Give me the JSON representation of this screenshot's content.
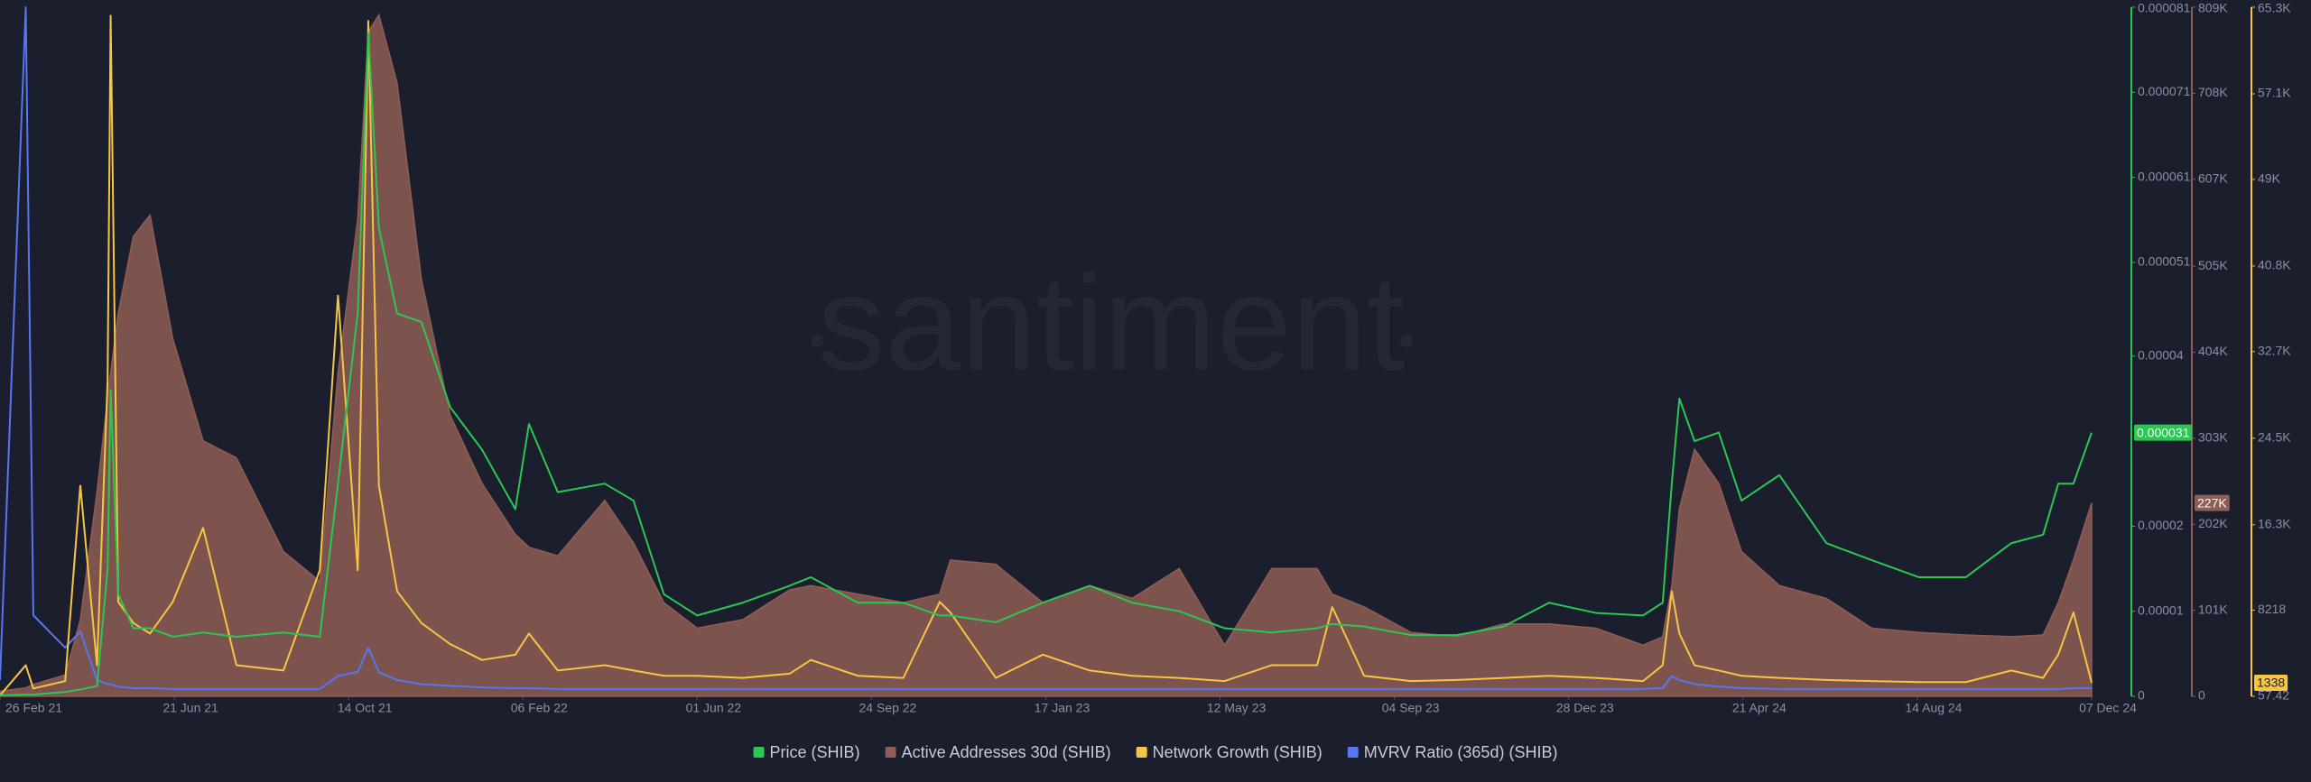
{
  "chart_data": {
    "type": "line",
    "watermark": "santiment",
    "x": [
      "2021-02-26",
      "2021-03-15",
      "2021-03-20",
      "2021-04-10",
      "2021-04-20",
      "2021-05-01",
      "2021-05-08",
      "2021-05-10",
      "2021-05-15",
      "2021-05-25",
      "2021-06-05",
      "2021-06-20",
      "2021-07-10",
      "2021-08-01",
      "2021-09-01",
      "2021-09-25",
      "2021-10-07",
      "2021-10-20",
      "2021-10-27",
      "2021-11-03",
      "2021-11-15",
      "2021-12-01",
      "2021-12-20",
      "2022-01-10",
      "2022-02-01",
      "2022-02-10",
      "2022-03-01",
      "2022-04-01",
      "2022-04-20",
      "2022-05-10",
      "2022-06-01",
      "2022-07-01",
      "2022-08-01",
      "2022-08-15",
      "2022-09-15",
      "2022-10-15",
      "2022-11-08",
      "2022-11-15",
      "2022-12-15",
      "2023-01-15",
      "2023-02-15",
      "2023-03-15",
      "2023-04-15",
      "2023-05-15",
      "2023-06-15",
      "2023-07-15",
      "2023-07-25",
      "2023-08-15",
      "2023-09-15",
      "2023-10-15",
      "2023-11-15",
      "2023-12-15",
      "2024-01-15",
      "2024-02-15",
      "2024-02-28",
      "2024-03-05",
      "2024-03-10",
      "2024-03-20",
      "2024-04-05",
      "2024-04-20",
      "2024-05-15",
      "2024-06-15",
      "2024-07-15",
      "2024-08-15",
      "2024-09-15",
      "2024-10-15",
      "2024-11-05",
      "2024-11-15",
      "2024-11-25",
      "2024-12-07"
    ],
    "xlim": [
      "2021-02-26",
      "2024-12-07"
    ],
    "xticks": [
      {
        "value": "2021-02-26",
        "label": "26 Feb 21"
      },
      {
        "value": "2021-06-21",
        "label": "21 Jun 21"
      },
      {
        "value": "2021-10-14",
        "label": "14 Oct 21"
      },
      {
        "value": "2022-02-06",
        "label": "06 Feb 22"
      },
      {
        "value": "2022-06-01",
        "label": "01 Jun 22"
      },
      {
        "value": "2022-09-24",
        "label": "24 Sep 22"
      },
      {
        "value": "2023-01-17",
        "label": "17 Jan 23"
      },
      {
        "value": "2023-05-12",
        "label": "12 May 23"
      },
      {
        "value": "2023-09-04",
        "label": "04 Sep 23"
      },
      {
        "value": "2023-12-28",
        "label": "28 Dec 23"
      },
      {
        "value": "2024-04-21",
        "label": "21 Apr 24"
      },
      {
        "value": "2024-08-14",
        "label": "14 Aug 24"
      },
      {
        "value": "2024-12-07",
        "label": "07 Dec 24"
      }
    ],
    "ylim": [
      0,
      8.1e-05
    ],
    "yticks": [
      0,
      1e-05,
      2e-05,
      4e-05,
      5.1e-05,
      6.1e-05,
      7.1e-05,
      8.1e-05
    ],
    "y2lim": [
      0,
      809000
    ],
    "y2ticks": [
      0,
      {
        "value": 101000,
        "label": "101K"
      },
      {
        "value": 202000,
        "label": "202K"
      },
      {
        "value": 303000,
        "label": "303K"
      },
      {
        "value": 404000,
        "label": "404K"
      },
      {
        "value": 505000,
        "label": "505K"
      },
      {
        "value": 607000,
        "label": "607K"
      },
      {
        "value": 708000,
        "label": "708K"
      },
      {
        "value": 809000,
        "label": "809K"
      }
    ],
    "y3lim": [
      57.42,
      65300
    ],
    "y3ticks": [
      57.42,
      8218,
      {
        "value": 16300,
        "label": "16.3K"
      },
      {
        "value": 24500,
        "label": "24.5K"
      },
      {
        "value": 32700,
        "label": "32.7K"
      },
      {
        "value": 40800,
        "label": "40.8K"
      },
      {
        "value": 49000,
        "label": "49K"
      },
      {
        "value": 57100,
        "label": "57.1K"
      },
      {
        "value": 65300,
        "label": "65.3K"
      }
    ],
    "legend": "bottom",
    "series": [
      {
        "name": "Price (SHIB)",
        "color": "#2bc753",
        "axis": "y",
        "mark": "line",
        "current_value": 3.1e-05,
        "values": [
          1e-07,
          2e-07,
          2e-07,
          5e-07,
          8e-07,
          1.2e-06,
          1.5e-05,
          3.6e-05,
          1.2e-05,
          8e-06,
          8e-06,
          7e-06,
          7.5e-06,
          7e-06,
          7.5e-06,
          7e-06,
          2.5e-05,
          4.5e-05,
          7.8e-05,
          5.5e-05,
          4.5e-05,
          4.4e-05,
          3.4e-05,
          2.9e-05,
          2.2e-05,
          3.2e-05,
          2.4e-05,
          2.5e-05,
          2.3e-05,
          1.2e-05,
          9.5e-06,
          1.1e-05,
          1.3e-05,
          1.4e-05,
          1.1e-05,
          1.1e-05,
          9.5e-06,
          9.5e-06,
          8.7e-06,
          1.1e-05,
          1.3e-05,
          1.1e-05,
          1e-05,
          8e-06,
          7.5e-06,
          8e-06,
          8.5e-06,
          8.2e-06,
          7.2e-06,
          7.2e-06,
          8.2e-06,
          1.1e-05,
          9.8e-06,
          9.5e-06,
          1.1e-05,
          2.5e-05,
          3.5e-05,
          3e-05,
          3.1e-05,
          2.3e-05,
          2.6e-05,
          1.8e-05,
          1.6e-05,
          1.4e-05,
          1.4e-05,
          1.8e-05,
          1.9e-05,
          2.5e-05,
          2.5e-05,
          3.1e-05
        ]
      },
      {
        "name": "Active Addresses 30d (SHIB)",
        "color": "#8e5d55",
        "axis": "y2",
        "mark": "area",
        "current_value": {
          "value": 227000,
          "label": "227K"
        },
        "values": [
          6000,
          10000,
          14000,
          25000,
          90000,
          240000,
          350000,
          380000,
          450000,
          540000,
          565000,
          420000,
          300000,
          280000,
          170000,
          135000,
          380000,
          560000,
          780000,
          800000,
          720000,
          490000,
          330000,
          250000,
          190000,
          175000,
          165000,
          230000,
          180000,
          110000,
          80000,
          90000,
          125000,
          130000,
          120000,
          110000,
          120000,
          160000,
          155000,
          110000,
          130000,
          115000,
          150000,
          60000,
          150000,
          150000,
          120000,
          105000,
          75000,
          70000,
          85000,
          85000,
          80000,
          60000,
          70000,
          130000,
          220000,
          290000,
          250000,
          170000,
          130000,
          115000,
          80000,
          75000,
          72000,
          70000,
          72000,
          110000,
          160000,
          227000
        ]
      },
      {
        "name": "Network Growth (SHIB)",
        "color": "#f7c544",
        "axis": "y3",
        "mark": "line",
        "current_value": 1338,
        "values": [
          150,
          3000,
          800,
          1500,
          20000,
          3000,
          30000,
          64500,
          9000,
          7000,
          6000,
          9000,
          16000,
          3000,
          2500,
          12000,
          38000,
          12000,
          64000,
          20000,
          10000,
          7000,
          5000,
          3500,
          4000,
          6000,
          2500,
          3000,
          2500,
          2000,
          2000,
          1800,
          2200,
          3500,
          2000,
          1800,
          9000,
          8000,
          1800,
          4000,
          2500,
          2000,
          1800,
          1500,
          3000,
          3000,
          8500,
          2000,
          1500,
          1600,
          1800,
          2000,
          1800,
          1500,
          3000,
          10000,
          6000,
          3000,
          2500,
          2000,
          1800,
          1600,
          1500,
          1400,
          1400,
          2500,
          1800,
          4000,
          8000,
          1338
        ]
      },
      {
        "name": "MVRV Ratio (365d) (SHIB)",
        "color": "#5677f2",
        "axis": "y4",
        "mark": "line",
        "values": [
          2,
          85,
          10,
          6,
          8,
          2,
          1.5,
          1.5,
          1.2,
          1,
          1,
          0.9,
          0.9,
          0.9,
          0.9,
          0.9,
          2.5,
          3,
          6,
          3,
          2,
          1.5,
          1.3,
          1.1,
          1,
          1,
          0.9,
          0.9,
          0.9,
          0.9,
          0.9,
          0.9,
          0.9,
          0.9,
          0.9,
          0.9,
          0.9,
          0.9,
          0.9,
          0.9,
          0.9,
          0.9,
          0.9,
          0.9,
          0.9,
          0.9,
          0.9,
          0.9,
          0.9,
          0.9,
          0.9,
          0.9,
          0.9,
          0.9,
          1,
          2.5,
          2,
          1.5,
          1.2,
          1,
          0.9,
          0.9,
          0.9,
          0.9,
          0.9,
          0.9,
          0.9,
          0.9,
          1,
          1
        ]
      }
    ]
  }
}
